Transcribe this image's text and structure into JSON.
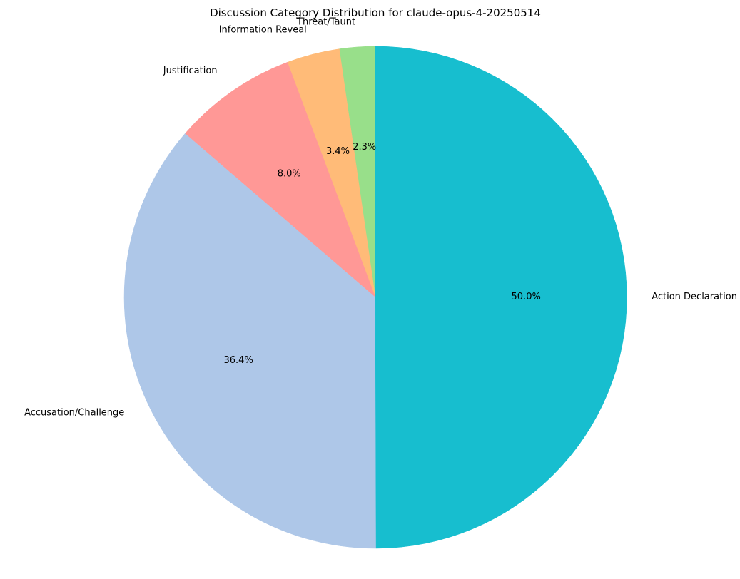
{
  "chart_data": {
    "type": "pie",
    "title": "Discussion Category Distribution for claude-opus-4-20250514",
    "start_angle_deg": 90,
    "direction": "counterclockwise",
    "slices": [
      {
        "label": "Threat/Taunt",
        "value": 2.3,
        "pct_label": "2.3%",
        "color": "#98df8a"
      },
      {
        "label": "Information Reveal",
        "value": 3.4,
        "pct_label": "3.4%",
        "color": "#ffbb78"
      },
      {
        "label": "Justification",
        "value": 8.0,
        "pct_label": "8.0%",
        "color": "#ff9896"
      },
      {
        "label": "Accusation/Challenge",
        "value": 36.4,
        "pct_label": "36.4%",
        "color": "#aec7e8"
      },
      {
        "label": "Action Declaration",
        "value": 50.0,
        "pct_label": "50.0%",
        "color": "#17becf"
      }
    ]
  }
}
